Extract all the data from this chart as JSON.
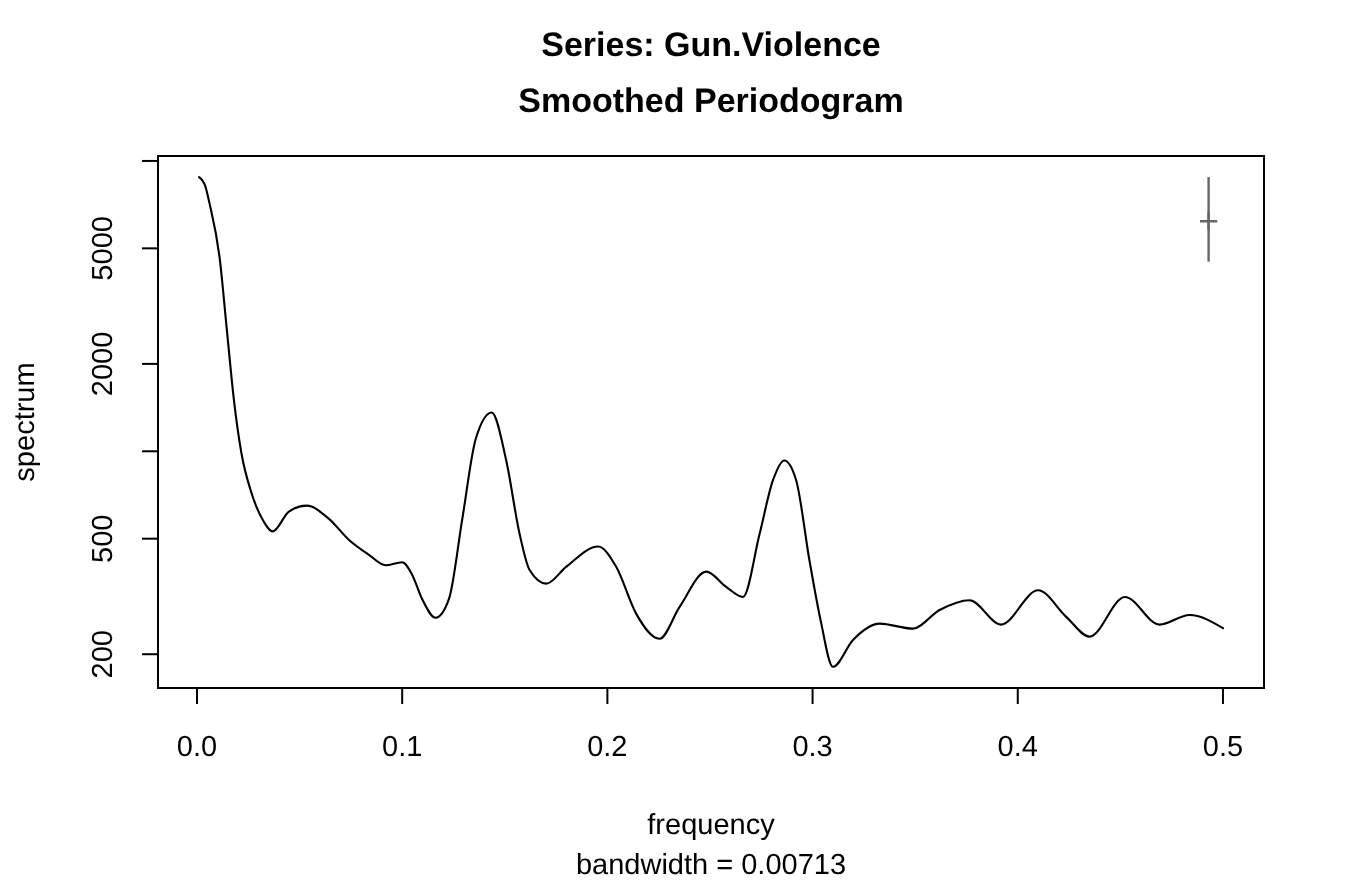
{
  "chart_data": {
    "type": "line",
    "title": "Series: Gun.Violence",
    "subtitle": "Smoothed Periodogram",
    "xlabel": "frequency",
    "ylabel": "spectrum",
    "annotations": [
      "bandwidth = 0.00713"
    ],
    "log": true,
    "xlim": [
      -0.019,
      0.52
    ],
    "xticks": [
      {
        "value": 0,
        "label": "0.0"
      },
      0.1,
      0.2,
      0.3,
      0.4,
      0.5
    ],
    "ylim": [
      153,
      10400
    ],
    "yticks": [
      200,
      500,
      {
        "value": 1000,
        "label": null
      },
      2000,
      5000,
      {
        "value": 10000,
        "label": null
      }
    ],
    "series": [
      {
        "color": "#000000",
        "x": [
          0.001,
          0.004,
          0.006,
          0.0111,
          0.0146,
          0.0181,
          0.0216,
          0.0268,
          0.0321,
          0.0369,
          0.0448,
          0.0535,
          0.0643,
          0.0741,
          0.0838,
          0.0919,
          0.1,
          0.1049,
          0.1097,
          0.1163,
          0.1228,
          0.1293,
          0.1358,
          0.1436,
          0.1507,
          0.1572,
          0.1621,
          0.1702,
          0.1799,
          0.1955,
          0.2043,
          0.214,
          0.2254,
          0.2352,
          0.2482,
          0.2579,
          0.2661,
          0.2742,
          0.2807,
          0.2862,
          0.292,
          0.2985,
          0.304,
          0.3099,
          0.3197,
          0.3327,
          0.3489,
          0.3619,
          0.3765,
          0.3918,
          0.4099,
          0.4236,
          0.435,
          0.4522,
          0.4691,
          0.4837,
          0.5
        ],
        "values": [
          8800,
          8200,
          7200,
          4600,
          2600,
          1480,
          990,
          710,
          580,
          530,
          620,
          650,
          585,
          495,
          440,
          405,
          415,
          375,
          310,
          267,
          310,
          585,
          1100,
          1360,
          930,
          520,
          390,
          350,
          400,
          470,
          400,
          276,
          226,
          291,
          385,
          341,
          315,
          520,
          795,
          930,
          795,
          420,
          260,
          181,
          224,
          255,
          245,
          284,
          307,
          253,
          332,
          269,
          230,
          315,
          253,
          273,
          246
        ]
      },
      {
        "type": "scatter",
        "color": "#666666",
        "marker": "cross",
        "x": [
          0.493
        ],
        "values": [
          6200
        ],
        "errors": [
          [
            4500,
            8800
          ]
        ]
      }
    ]
  }
}
